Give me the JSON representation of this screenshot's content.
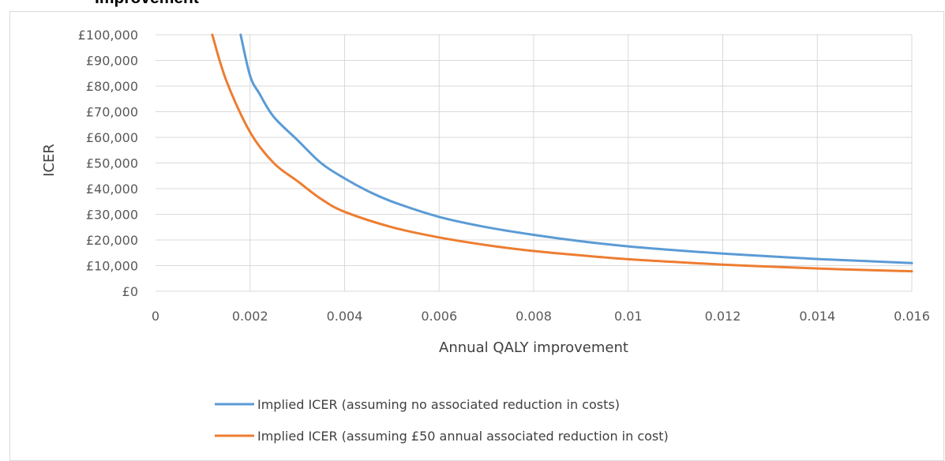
{
  "heading_fragment": "Improvement",
  "chart_data": {
    "type": "line",
    "title": "",
    "xlabel": "Annual QALY improvement",
    "ylabel": "ICER",
    "xlim": [
      0,
      0.016
    ],
    "ylim": [
      0,
      100000
    ],
    "x_ticks": [
      "0",
      "0.002",
      "0.004",
      "0.006",
      "0.008",
      "0.01",
      "0.012",
      "0.014",
      "0.016"
    ],
    "y_ticks": [
      "£0",
      "£10,000",
      "£20,000",
      "£30,000",
      "£40,000",
      "£50,000",
      "£60,000",
      "£70,000",
      "£80,000",
      "£90,000",
      "£100,000"
    ],
    "grid": true,
    "legend_position": "bottom",
    "series": [
      {
        "name": "Implied ICER (assuming no associated reduction in costs)",
        "color": "#5b9bd5",
        "x": [
          0.0018,
          0.002,
          0.0022,
          0.0025,
          0.003,
          0.0035,
          0.004,
          0.0045,
          0.005,
          0.006,
          0.007,
          0.008,
          0.009,
          0.01,
          0.011,
          0.012,
          0.013,
          0.014,
          0.015,
          0.016
        ],
        "y": [
          100000,
          84000,
          77000,
          68000,
          59000,
          50000,
          44000,
          39000,
          35000,
          29000,
          25000,
          22000,
          19500,
          17500,
          16000,
          14700,
          13600,
          12600,
          11800,
          11000
        ]
      },
      {
        "name": "Implied ICER (assuming £50 annual associated reduction in cost)",
        "color": "#ed7d31",
        "x": [
          0.0012,
          0.0015,
          0.002,
          0.0025,
          0.003,
          0.0035,
          0.004,
          0.005,
          0.006,
          0.007,
          0.008,
          0.009,
          0.01,
          0.011,
          0.012,
          0.013,
          0.014,
          0.015,
          0.016
        ],
        "y": [
          100000,
          82000,
          62000,
          50000,
          43000,
          36000,
          31000,
          25000,
          21000,
          18000,
          15700,
          14000,
          12500,
          11400,
          10400,
          9600,
          8900,
          8300,
          7800
        ]
      }
    ]
  }
}
